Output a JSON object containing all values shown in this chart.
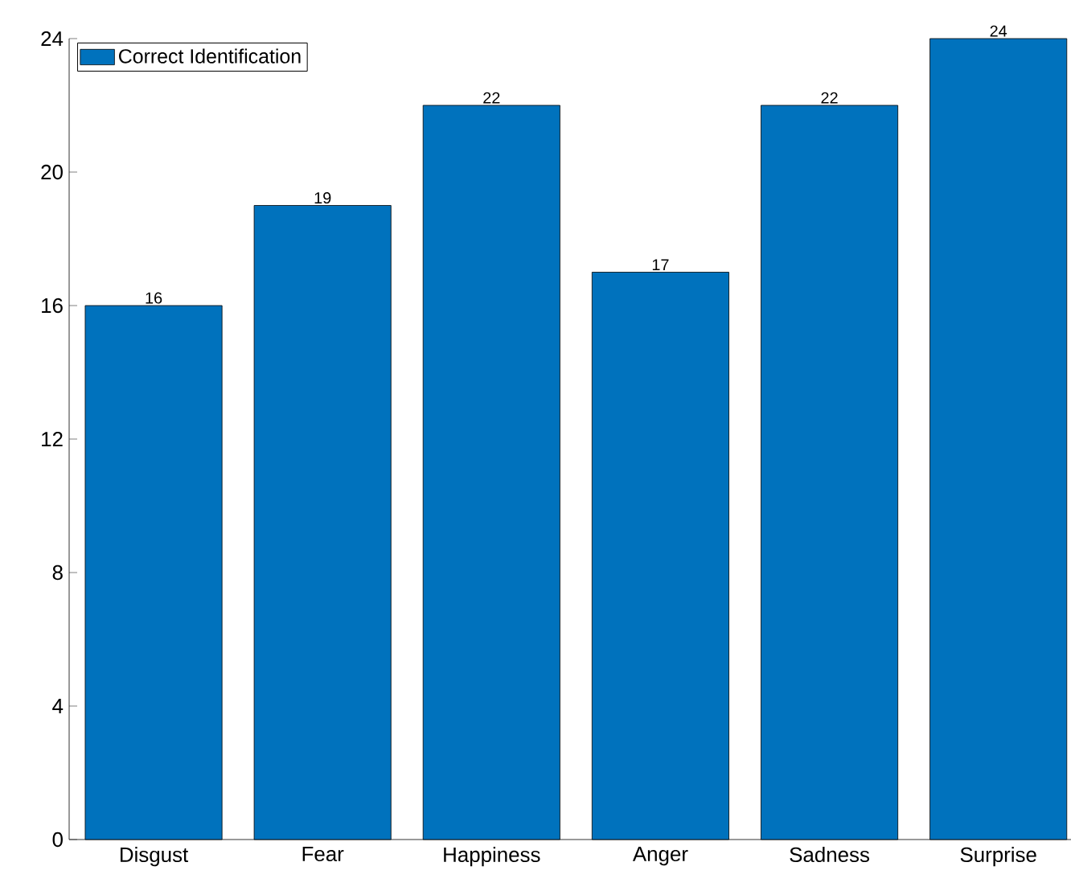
{
  "chart_data": {
    "type": "bar",
    "categories": [
      "Disgust",
      "Fear",
      "Happiness",
      "Anger",
      "Sadness",
      "Surprise"
    ],
    "series": [
      {
        "name": "Correct Identification",
        "color": "#0072bd",
        "values": [
          16,
          19,
          22,
          17,
          22,
          24
        ]
      }
    ],
    "ylim": [
      0,
      24
    ],
    "yticks": [
      0,
      4,
      8,
      12,
      16,
      20,
      24
    ],
    "data_labels": true,
    "legend": "top left",
    "grid": false
  }
}
